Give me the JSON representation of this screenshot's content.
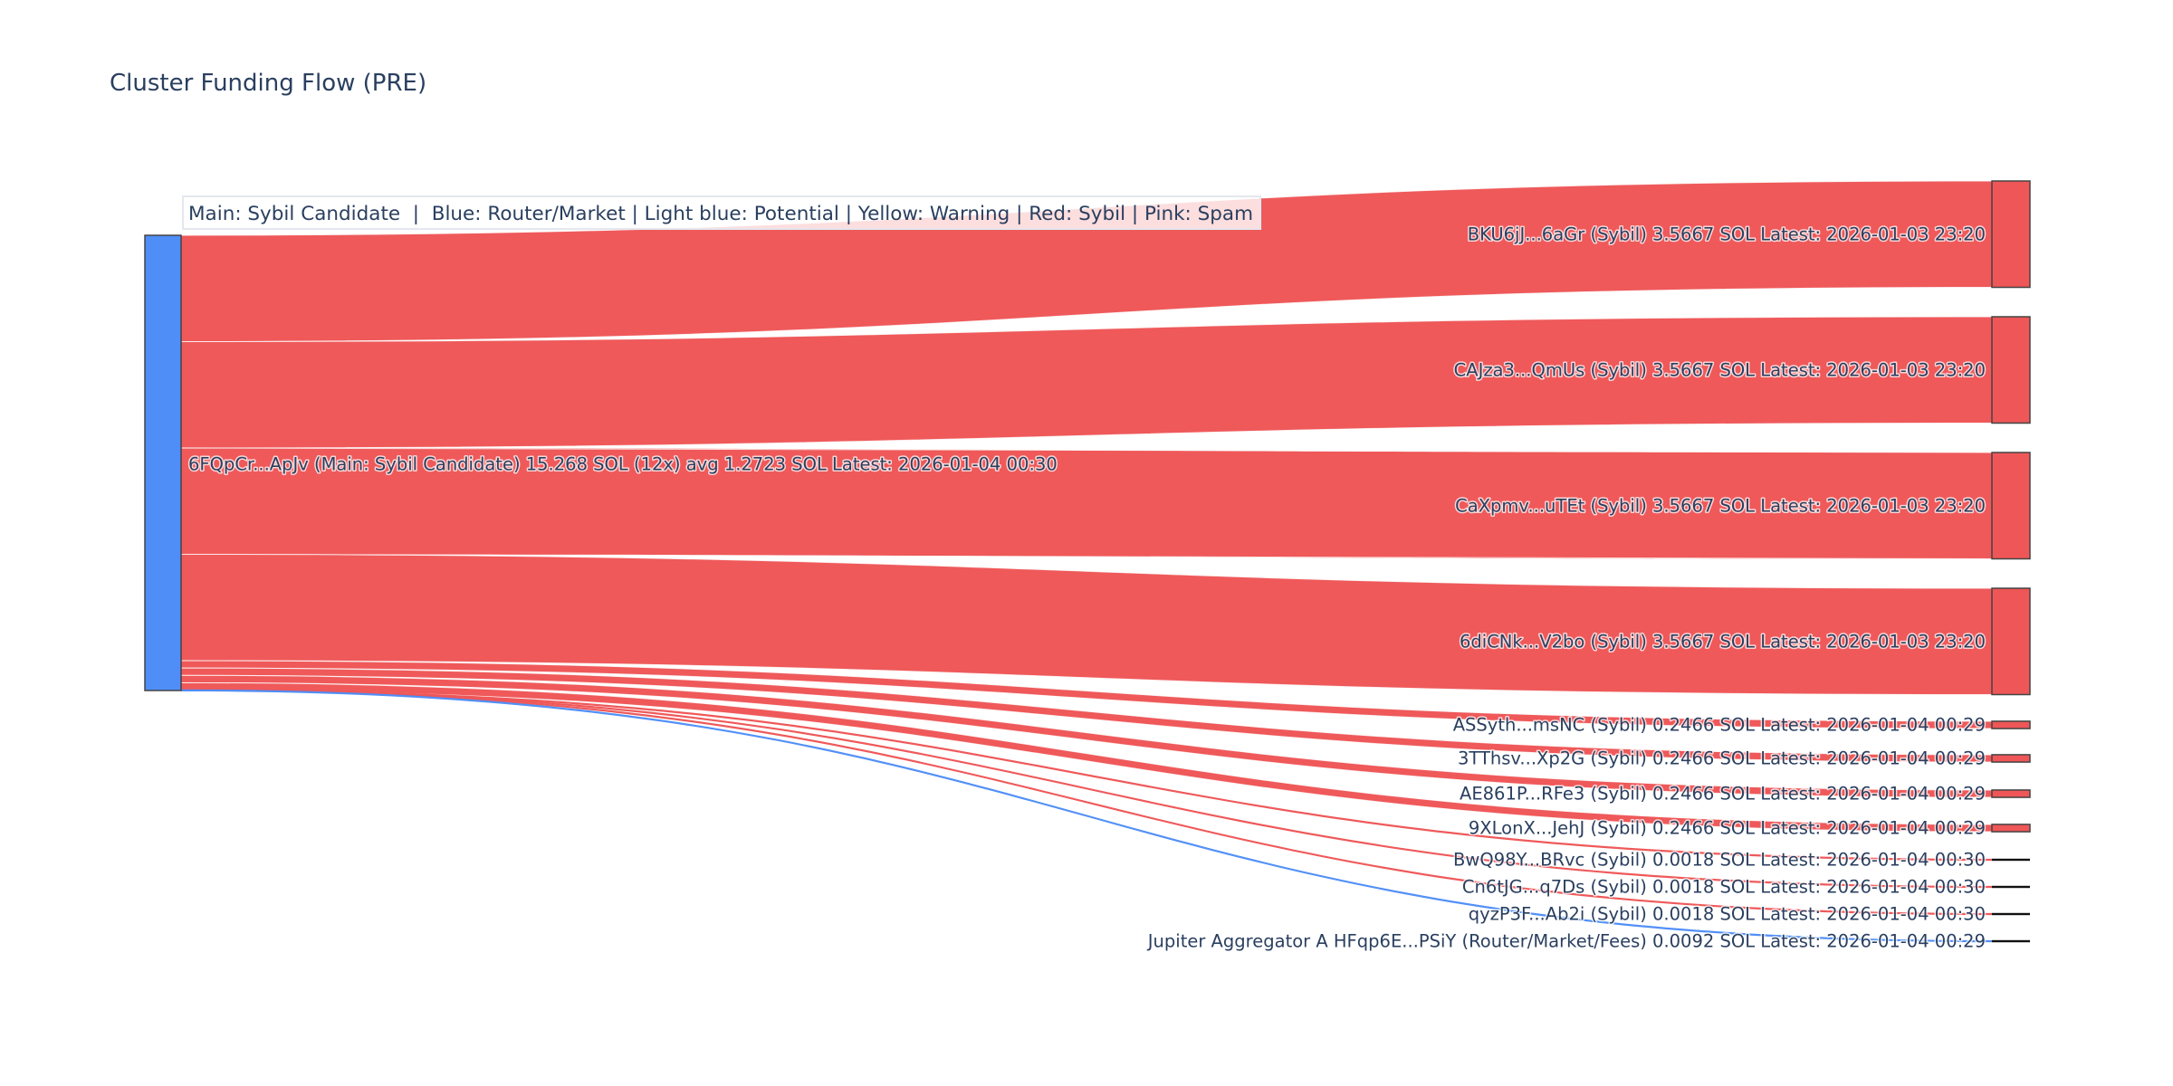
{
  "chart_data": {
    "type": "sankey",
    "title": "Cluster Funding Flow (PRE)",
    "annotation": "Main: Sybil Candidate  |  Blue: Router/Market | Light blue: Potential | Yellow: Warning | Red: Sybil | Pink: Spam",
    "colors": {
      "main": "#4f8ef7",
      "sybil": "#ef5657",
      "router": "#4f8ef7",
      "label": "#2a3f5f",
      "node_border": "#444444"
    },
    "source": {
      "label": "6FQpCr...ApJv (Main: Sybil Candidate) 15.268 SOL (12x) avg 1.2723 SOL Latest: 2026-01-04 00:30",
      "value": 15.268,
      "category": "main"
    },
    "targets": [
      {
        "label": "BKU6jJ...6aGr (Sybil) 3.5667 SOL Latest: 2026-01-03 23:20",
        "value": 3.5667,
        "category": "sybil"
      },
      {
        "label": "CAJza3...QmUs (Sybil) 3.5667 SOL Latest: 2026-01-03 23:20",
        "value": 3.5667,
        "category": "sybil"
      },
      {
        "label": "CaXpmv...uTEt (Sybil) 3.5667 SOL Latest: 2026-01-03 23:20",
        "value": 3.5667,
        "category": "sybil"
      },
      {
        "label": "6diCNk...V2bo (Sybil) 3.5667 SOL Latest: 2026-01-03 23:20",
        "value": 3.5667,
        "category": "sybil"
      },
      {
        "label": "ASSyth...msNC (Sybil) 0.2466 SOL Latest: 2026-01-04 00:29",
        "value": 0.2466,
        "category": "sybil"
      },
      {
        "label": "3TThsv...Xp2G (Sybil) 0.2466 SOL Latest: 2026-01-04 00:29",
        "value": 0.2466,
        "category": "sybil"
      },
      {
        "label": "AE861P...RFe3 (Sybil) 0.2466 SOL Latest: 2026-01-04 00:29",
        "value": 0.2466,
        "category": "sybil"
      },
      {
        "label": "9XLonX...JehJ (Sybil) 0.2466 SOL Latest: 2026-01-04 00:29",
        "value": 0.2466,
        "category": "sybil"
      },
      {
        "label": "BwQ98Y...BRvc (Sybil) 0.0018 SOL Latest: 2026-01-04 00:30",
        "value": 0.0018,
        "category": "sybil"
      },
      {
        "label": "Cn6tJG...q7Ds (Sybil) 0.0018 SOL Latest: 2026-01-04 00:30",
        "value": 0.0018,
        "category": "sybil"
      },
      {
        "label": "qyzP3F...Ab2i (Sybil) 0.0018 SOL Latest: 2026-01-04 00:30",
        "value": 0.0018,
        "category": "sybil"
      },
      {
        "label": "Jupiter Aggregator A HFqp6E...PSiY (Router/Market/Fees) 0.0092 SOL Latest: 2026-01-04 00:29",
        "value": 0.0092,
        "category": "router"
      }
    ]
  }
}
